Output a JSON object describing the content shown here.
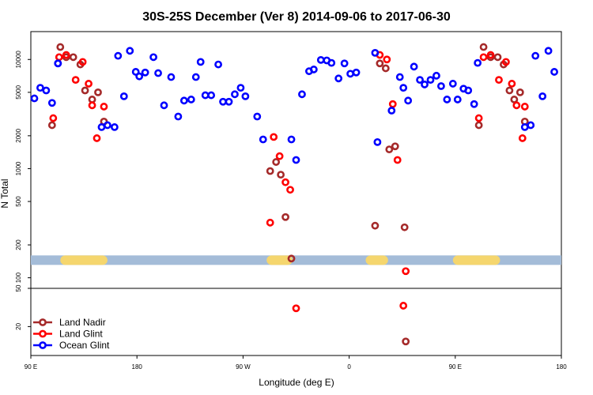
{
  "chart_data": {
    "type": "scatter",
    "title": "30S-25S December (Ver 8)   2014-09-06 to 2017-06-30",
    "xlabel": "Longitude (deg E)",
    "ylabel": "N Total",
    "x_ticks": [
      {
        "value": 90,
        "label": "90 E"
      },
      {
        "value": 180,
        "label": "180"
      },
      {
        "value": 270,
        "label": "90 W"
      },
      {
        "value": 360,
        "label": "0"
      },
      {
        "value": 450,
        "label": "90 E"
      },
      {
        "value": 540,
        "label": "180"
      }
    ],
    "xlim": [
      90,
      540
    ],
    "y_scale": "log",
    "upper_panel": {
      "ylim": [
        80,
        18000
      ],
      "y_ticks": [
        {
          "value": 100,
          "label": "100"
        },
        {
          "value": 200,
          "label": "200"
        },
        {
          "value": 500,
          "label": "500"
        },
        {
          "value": 1000,
          "label": "1000"
        },
        {
          "value": 2000,
          "label": "2000"
        },
        {
          "value": 5000,
          "label": "5000"
        },
        {
          "value": 10000,
          "label": "10000"
        }
      ],
      "land_bar": {
        "y_value": 145,
        "base_color": "#a4bcd8",
        "land_color": "#f5d66e",
        "land_segments": [
          [
            115,
            155
          ],
          [
            290,
            312
          ],
          [
            374,
            393
          ],
          [
            448,
            488
          ]
        ]
      }
    },
    "lower_panel": {
      "ylim": [
        10,
        50
      ],
      "y_ticks": [
        {
          "value": 20,
          "label": "20"
        },
        {
          "value": 50,
          "label": "50"
        }
      ]
    },
    "series": [
      {
        "name": "Land Nadir",
        "color": "#a52a2a",
        "points": [
          [
            115,
            13000
          ],
          [
            108,
            2500
          ],
          [
            120,
            10500
          ],
          [
            126,
            10500
          ],
          [
            132,
            9000
          ],
          [
            136,
            5200
          ],
          [
            142,
            4300
          ],
          [
            147,
            5000
          ],
          [
            152,
            2700
          ],
          [
            293,
            950
          ],
          [
            298,
            1150
          ],
          [
            302,
            880
          ],
          [
            306,
            360
          ],
          [
            311,
            150
          ],
          [
            382,
            300
          ],
          [
            407,
            290
          ],
          [
            386,
            9200
          ],
          [
            391,
            8300
          ],
          [
            394,
            1500
          ],
          [
            399,
            1600
          ],
          [
            474,
            13000
          ],
          [
            470,
            2500
          ],
          [
            480,
            10500
          ],
          [
            486,
            10500
          ],
          [
            491,
            9000
          ],
          [
            496,
            5200
          ],
          [
            500,
            4300
          ],
          [
            505,
            5000
          ],
          [
            509,
            2700
          ],
          [
            408,
            14
          ]
        ]
      },
      {
        "name": "Land Glint",
        "color": "#ff0000",
        "points": [
          [
            114,
            10500
          ],
          [
            109,
            2900
          ],
          [
            120,
            11000
          ],
          [
            128,
            6500
          ],
          [
            134,
            9500
          ],
          [
            139,
            6000
          ],
          [
            142,
            3800
          ],
          [
            146,
            1900
          ],
          [
            152,
            3700
          ],
          [
            296,
            1950
          ],
          [
            301,
            1300
          ],
          [
            306,
            750
          ],
          [
            310,
            640
          ],
          [
            293,
            320
          ],
          [
            315,
            31
          ],
          [
            386,
            11000
          ],
          [
            392,
            10000
          ],
          [
            397,
            3900
          ],
          [
            401,
            1200
          ],
          [
            408,
            115
          ],
          [
            406,
            33
          ],
          [
            474,
            10500
          ],
          [
            470,
            2900
          ],
          [
            480,
            11000
          ],
          [
            487,
            6500
          ],
          [
            493,
            9500
          ],
          [
            498,
            6000
          ],
          [
            502,
            3800
          ],
          [
            507,
            1900
          ],
          [
            509,
            3700
          ]
        ]
      },
      {
        "name": "Ocean Glint",
        "color": "#0000ff",
        "points": [
          [
            93,
            4400
          ],
          [
            98,
            5500
          ],
          [
            103,
            5200
          ],
          [
            108,
            4000
          ],
          [
            113,
            9200
          ],
          [
            113,
            9200
          ],
          [
            164,
            10800
          ],
          [
            169,
            4600
          ],
          [
            174,
            12000
          ],
          [
            179,
            7700
          ],
          [
            182,
            7000
          ],
          [
            187,
            7600
          ],
          [
            194,
            10500
          ],
          [
            198,
            7500
          ],
          [
            203,
            3800
          ],
          [
            209,
            6900
          ],
          [
            215,
            3000
          ],
          [
            220,
            4200
          ],
          [
            226,
            4300
          ],
          [
            230,
            6900
          ],
          [
            234,
            9500
          ],
          [
            238,
            4700
          ],
          [
            243,
            4700
          ],
          [
            249,
            9000
          ],
          [
            253,
            4100
          ],
          [
            258,
            4100
          ],
          [
            263,
            4800
          ],
          [
            268,
            5500
          ],
          [
            272,
            4600
          ],
          [
            282,
            3000
          ],
          [
            287,
            1850
          ],
          [
            311,
            1850
          ],
          [
            315,
            1200
          ],
          [
            320,
            4800
          ],
          [
            326,
            7800
          ],
          [
            330,
            8100
          ],
          [
            336,
            9900
          ],
          [
            341,
            9800
          ],
          [
            345,
            9300
          ],
          [
            351,
            6700
          ],
          [
            356,
            9200
          ],
          [
            361,
            7400
          ],
          [
            366,
            7600
          ],
          [
            382,
            11500
          ],
          [
            384,
            1750
          ],
          [
            396,
            3400
          ],
          [
            403,
            6900
          ],
          [
            406,
            5500
          ],
          [
            410,
            4200
          ],
          [
            415,
            8600
          ],
          [
            420,
            6500
          ],
          [
            424,
            5900
          ],
          [
            429,
            6500
          ],
          [
            434,
            7100
          ],
          [
            438,
            5700
          ],
          [
            443,
            4300
          ],
          [
            448,
            6000
          ],
          [
            452,
            4300
          ],
          [
            457,
            5400
          ],
          [
            461,
            5200
          ],
          [
            466,
            3900
          ],
          [
            469,
            9300
          ],
          [
            509,
            2400
          ],
          [
            514,
            2500
          ],
          [
            518,
            10800
          ],
          [
            524,
            4600
          ],
          [
            529,
            12000
          ],
          [
            534,
            7700
          ],
          [
            150,
            2400
          ],
          [
            155,
            2500
          ],
          [
            161,
            2400
          ]
        ]
      }
    ],
    "legend": {
      "position": "bottom-left",
      "entries": [
        "Land Nadir",
        "Land Glint",
        "Ocean Glint"
      ]
    }
  }
}
